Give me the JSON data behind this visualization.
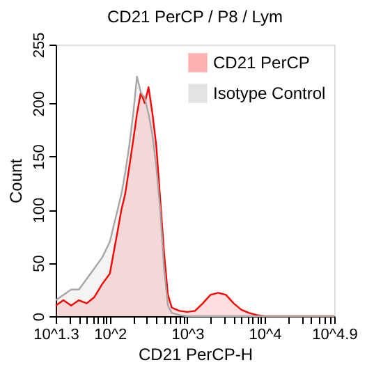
{
  "chart_data": {
    "type": "area",
    "title": "CD21 PerCP / P8 / Lym",
    "xlabel": "CD21 PerCP-H",
    "ylabel": "Count",
    "log": "x",
    "xlim": [
      19.95,
      79433
    ],
    "xticks": [
      {
        "value": 19.95,
        "label": "10^1.3"
      },
      {
        "value": 100,
        "label": "10^2"
      },
      {
        "value": 1000,
        "label": "10^3"
      },
      {
        "value": 10000,
        "label": "10^4"
      },
      {
        "value": 79433,
        "label": "10^4.9"
      },
      {
        "value": 30,
        "label": null
      },
      {
        "value": 40,
        "label": null
      },
      {
        "value": 50,
        "label": null
      },
      {
        "value": 60,
        "label": null
      },
      {
        "value": 70,
        "label": null
      },
      {
        "value": 80,
        "label": null
      },
      {
        "value": 90,
        "label": null
      },
      {
        "value": 200,
        "label": null
      },
      {
        "value": 300,
        "label": null
      },
      {
        "value": 400,
        "label": null
      },
      {
        "value": 500,
        "label": null
      },
      {
        "value": 600,
        "label": null
      },
      {
        "value": 700,
        "label": null
      },
      {
        "value": 800,
        "label": null
      },
      {
        "value": 900,
        "label": null
      },
      {
        "value": 2000,
        "label": null
      },
      {
        "value": 3000,
        "label": null
      },
      {
        "value": 4000,
        "label": null
      },
      {
        "value": 5000,
        "label": null
      },
      {
        "value": 6000,
        "label": null
      },
      {
        "value": 7000,
        "label": null
      },
      {
        "value": 8000,
        "label": null
      },
      {
        "value": 9000,
        "label": null
      },
      {
        "value": 20000,
        "label": null
      },
      {
        "value": 30000,
        "label": null
      },
      {
        "value": 40000,
        "label": null
      },
      {
        "value": 50000,
        "label": null
      },
      {
        "value": 60000,
        "label": null
      },
      {
        "value": 70000,
        "label": null
      }
    ],
    "ylim": [
      0,
      255
    ],
    "yticks": [
      0,
      50,
      100,
      150,
      200,
      255
    ],
    "grid": false,
    "legend": "top right",
    "series": [
      {
        "name": "CD21 PerCP",
        "color": "#ff0000",
        "x": [
          19.95,
          25.1,
          31.6,
          39.8,
          50.1,
          63.1,
          79.4,
          100,
          112,
          126,
          141,
          158,
          178,
          200,
          224,
          251,
          282,
          316,
          355,
          398,
          447,
          501,
          562,
          631,
          794,
          1000,
          1259,
          1585,
          1995,
          2512,
          3162,
          3981,
          5012,
          6310,
          7943,
          10000,
          79433
        ],
        "values": [
          10,
          15,
          10,
          15,
          12,
          18,
          30,
          40,
          60,
          80,
          100,
          115,
          140,
          165,
          190,
          210,
          200,
          215,
          190,
          160,
          110,
          60,
          20,
          8,
          5,
          4,
          5,
          12,
          20,
          22,
          20,
          12,
          6,
          3,
          1,
          0,
          0
        ]
      },
      {
        "name": "Isotype Control",
        "color": "#a6a6a6",
        "x": [
          19.95,
          25.1,
          31.6,
          39.8,
          50.1,
          63.1,
          79.4,
          100,
          112,
          126,
          141,
          158,
          178,
          200,
          224,
          251,
          282,
          316,
          355,
          398,
          447,
          501,
          562,
          631,
          794,
          1000,
          79433
        ],
        "values": [
          15,
          20,
          25,
          25,
          35,
          45,
          55,
          70,
          85,
          100,
          115,
          135,
          160,
          190,
          225,
          210,
          205,
          190,
          170,
          140,
          100,
          45,
          10,
          3,
          1,
          0,
          0
        ]
      }
    ]
  }
}
